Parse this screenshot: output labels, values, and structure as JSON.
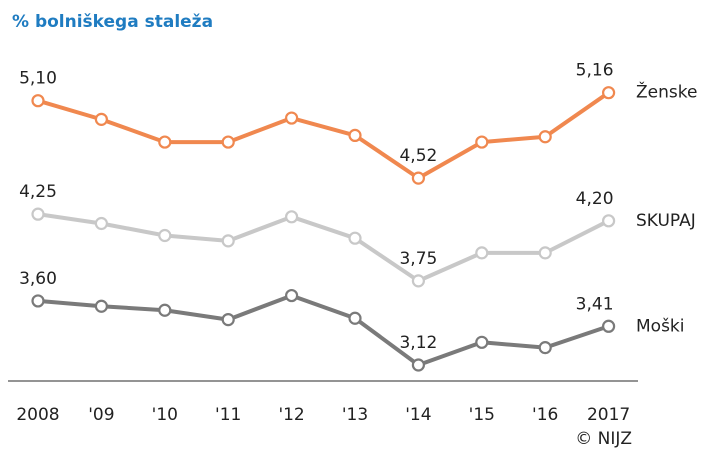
{
  "chart_data": {
    "type": "line",
    "title": "% bolniškega staleža",
    "source": "© NIJZ",
    "categories": [
      "2008",
      "'09",
      "'10",
      "'11",
      "'12",
      "'13",
      "'14",
      "'15",
      "'16",
      "2017"
    ],
    "series": [
      {
        "name": "Ženske",
        "color": "#f0884f",
        "values": [
          5.1,
          4.96,
          4.79,
          4.79,
          4.97,
          4.84,
          4.52,
          4.79,
          4.83,
          5.16
        ],
        "value_labels": [
          "5,10",
          null,
          null,
          null,
          null,
          null,
          "4,52",
          null,
          null,
          "5,16"
        ]
      },
      {
        "name": "SKUPAJ",
        "color": "#c8c8c8",
        "values": [
          4.25,
          4.18,
          4.09,
          4.05,
          4.23,
          4.07,
          3.75,
          3.96,
          3.96,
          4.2
        ],
        "value_labels": [
          "4,25",
          null,
          null,
          null,
          null,
          null,
          "3,75",
          null,
          null,
          "4,20"
        ]
      },
      {
        "name": "Moški",
        "color": "#7a7a7a",
        "values": [
          3.6,
          3.56,
          3.53,
          3.46,
          3.64,
          3.47,
          3.12,
          3.29,
          3.25,
          3.41
        ],
        "value_labels": [
          "3,60",
          null,
          null,
          null,
          null,
          null,
          "3,12",
          null,
          null,
          "3,41"
        ]
      }
    ],
    "ylim": [
      3.0,
      5.3
    ]
  }
}
